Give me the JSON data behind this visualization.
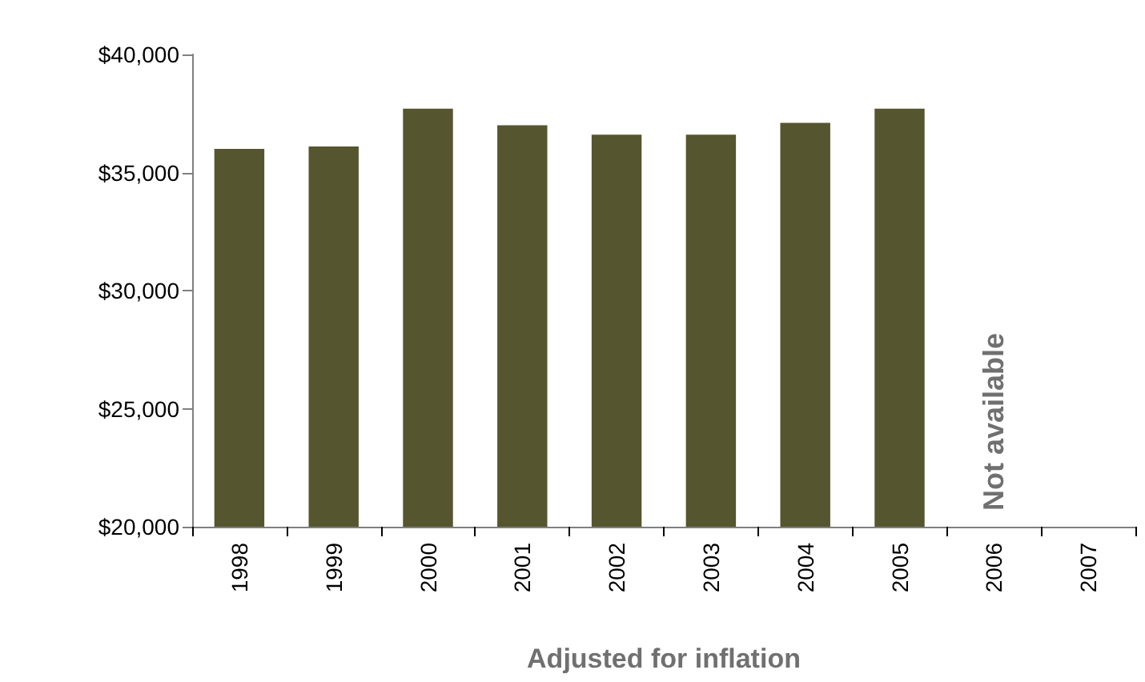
{
  "chart_data": {
    "type": "bar",
    "xlabel": "Adjusted for inflation",
    "categories": [
      "1998",
      "1999",
      "2000",
      "2001",
      "2002",
      "2003",
      "2004",
      "2005",
      "2006",
      "2007"
    ],
    "values": [
      36000,
      36100,
      37700,
      37000,
      36600,
      36600,
      37100,
      37700,
      null,
      null
    ],
    "color": "#55552f",
    "ylim": [
      20000,
      40000
    ],
    "yticks": [
      {
        "value": 20000,
        "label": "$20,000"
      },
      {
        "value": 25000,
        "label": "$25,000"
      },
      {
        "value": 30000,
        "label": "$30,000"
      },
      {
        "value": 35000,
        "label": "$35,000"
      },
      {
        "value": 40000,
        "label": "$40,000"
      }
    ],
    "annotations": [
      "Not available"
    ],
    "grid": false
  }
}
